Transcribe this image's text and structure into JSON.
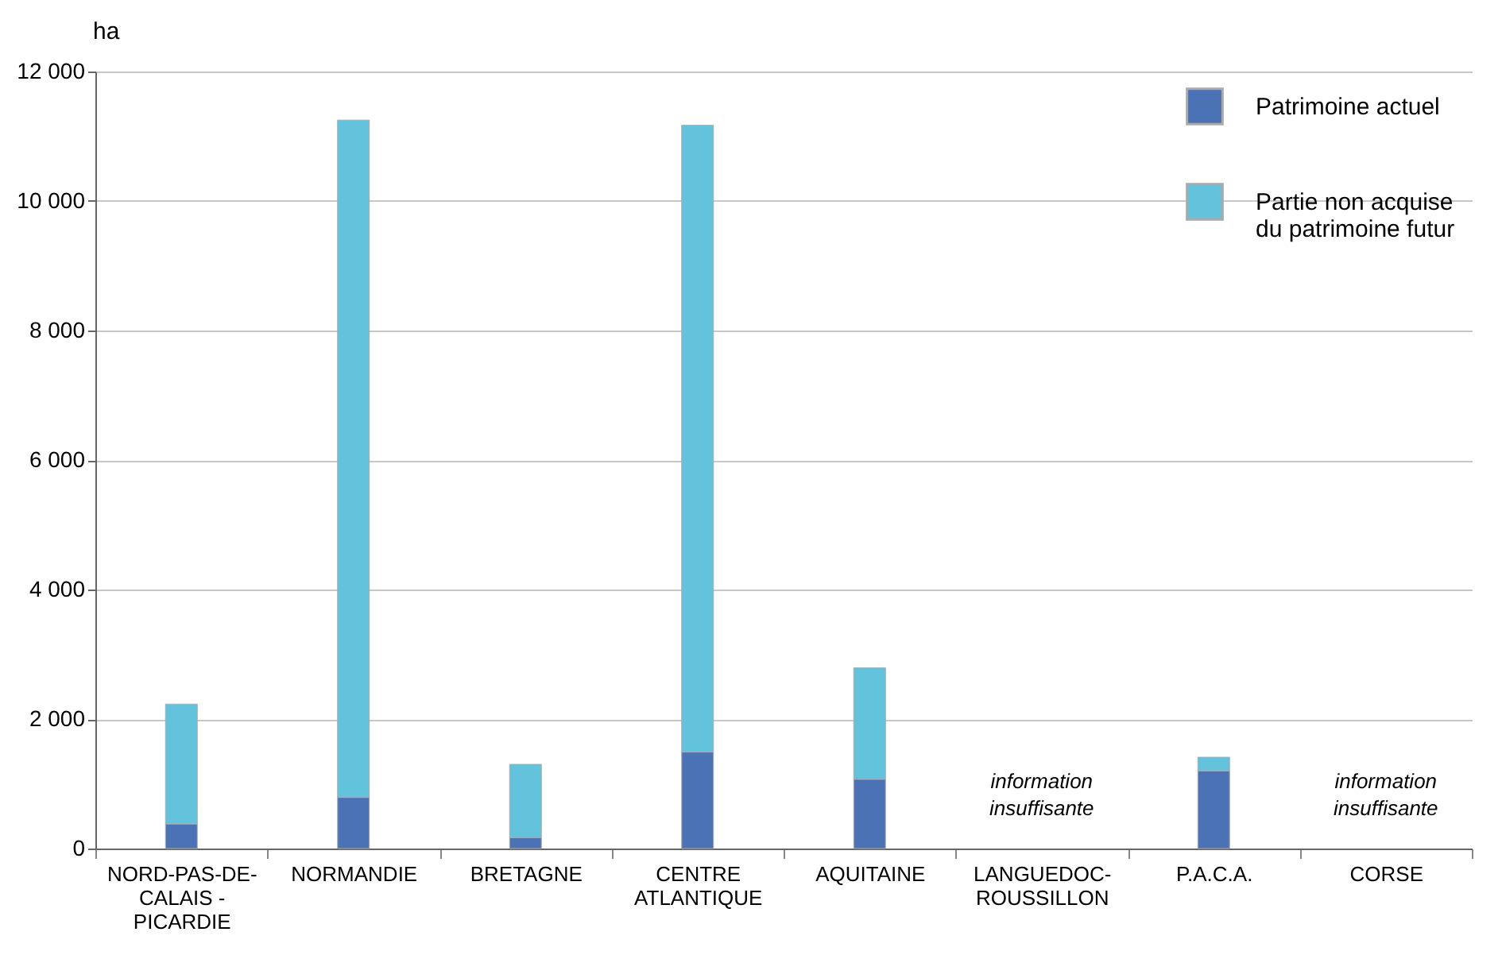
{
  "chart_data": {
    "type": "bar",
    "stacked": true,
    "ylabel": "ha",
    "categories": [
      "NORD-PAS-DE-CALAIS - PICARDIE",
      "NORMANDIE",
      "BRETAGNE",
      "CENTRE ATLANTIQUE",
      "AQUITAINE",
      "LANGUEDOC-ROUSSILLON",
      "P.A.C.A.",
      "CORSE"
    ],
    "series": [
      {
        "name": "Patrimoine actuel",
        "color": "#4a72b5",
        "values": [
          380,
          790,
          170,
          1490,
          1070,
          null,
          1200,
          null
        ]
      },
      {
        "name": "Partie non acquise du patrimoine futur",
        "color": "#63c3dc",
        "values": [
          1850,
          10460,
          1130,
          9680,
          1720,
          null,
          210,
          null
        ]
      }
    ],
    "ylim": [
      0,
      12000
    ],
    "yticks": [
      {
        "value": 0,
        "label": "0"
      },
      {
        "value": 2000,
        "label": "2 000"
      },
      {
        "value": 4000,
        "label": "4 000"
      },
      {
        "value": 6000,
        "label": "6 000"
      },
      {
        "value": 8000,
        "label": "8 000"
      },
      {
        "value": 10000,
        "label": "10 000"
      },
      {
        "value": 12000,
        "label": "12 000"
      }
    ],
    "grid": "y",
    "legend": "top right",
    "annotations": [
      "information insuffisante",
      "information insuffisante"
    ]
  }
}
